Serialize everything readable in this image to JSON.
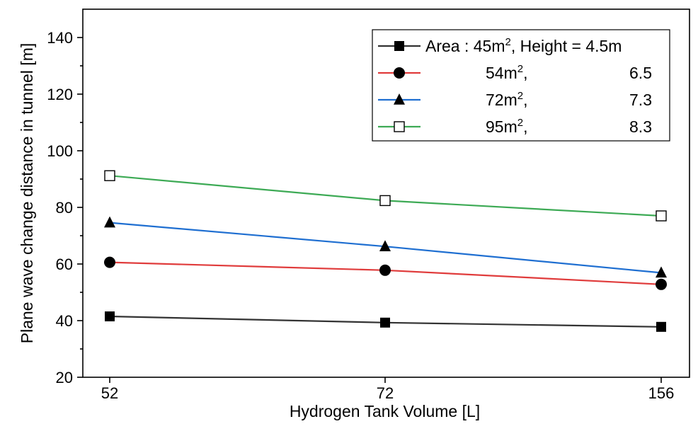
{
  "chart_data": {
    "type": "line",
    "xlabel": "Hydrogen Tank Volume [L]",
    "ylabel": "Plane wave change distance in tunnel [m]",
    "categories": [
      "52",
      "72",
      "156"
    ],
    "ylim": [
      20,
      150
    ],
    "yticks": [
      20,
      40,
      60,
      80,
      100,
      120,
      140
    ],
    "grid": false,
    "legend_position": "top-right",
    "series": [
      {
        "name_prefix": "Area : 45m",
        "name_sup": "2",
        "name_suffix": ", Height = 4.5m",
        "marker": "square-filled",
        "color": "#333333",
        "values": [
          41.5,
          39.3,
          37.8
        ]
      },
      {
        "name_prefix": "54m",
        "name_sup": "2",
        "name_suffix": ",",
        "name_height": "6.5",
        "marker": "circle-filled",
        "color": "#e03c3c",
        "values": [
          60.6,
          57.8,
          52.8
        ]
      },
      {
        "name_prefix": "72m",
        "name_sup": "2",
        "name_suffix": ",",
        "name_height": "7.3",
        "marker": "triangle-filled",
        "color": "#1f6fd1",
        "values": [
          74.6,
          66.2,
          56.9
        ]
      },
      {
        "name_prefix": "95m",
        "name_sup": "2",
        "name_suffix": ",",
        "name_height": "8.3",
        "marker": "square-open",
        "color": "#3daa55",
        "values": [
          91.2,
          82.4,
          77.0
        ]
      }
    ]
  }
}
